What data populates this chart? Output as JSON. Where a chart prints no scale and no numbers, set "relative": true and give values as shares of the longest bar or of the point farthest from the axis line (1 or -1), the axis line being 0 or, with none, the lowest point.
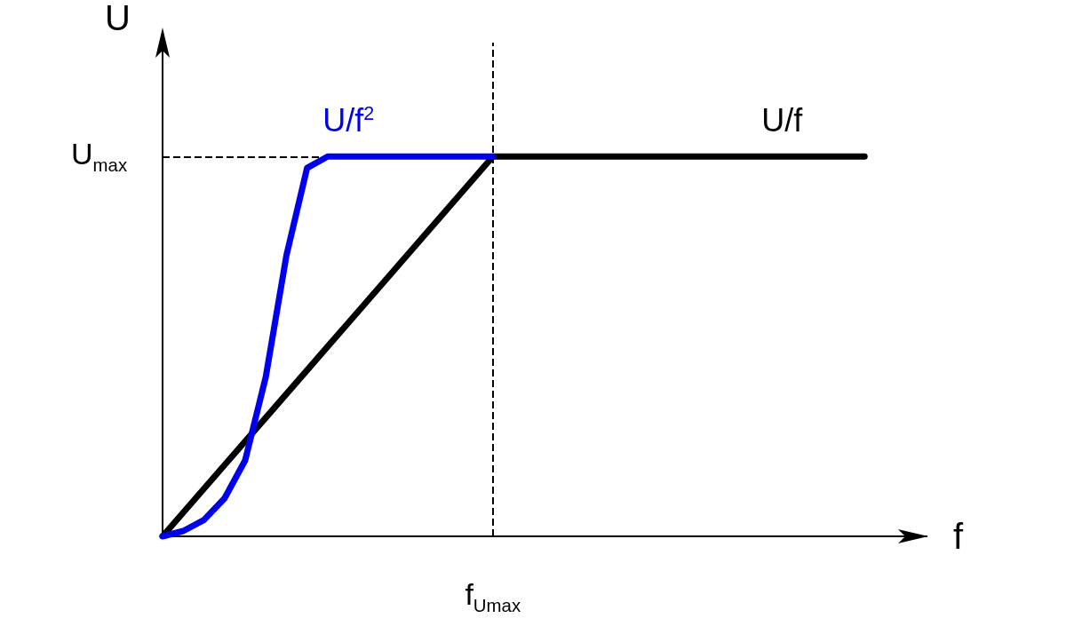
{
  "chart_data": {
    "type": "line",
    "relative": true,
    "xlabel": "f",
    "ylabel": "U",
    "categories": [
      null,
      null,
      null,
      null,
      null,
      null,
      null,
      null,
      null,
      null,
      null,
      null,
      null,
      null,
      null,
      null,
      null,
      null,
      null,
      null,
      null,
      null,
      null,
      null,
      null,
      null,
      null,
      null,
      null,
      null,
      null,
      null,
      null,
      null,
      null,
      null,
      null,
      null
    ],
    "series": [
      {
        "name": "U/f",
        "color": "#000000",
        "values": [
          0,
          0.0625,
          0.125,
          0.1875,
          0.25,
          0.3125,
          0.375,
          0.4375,
          0.5,
          0.5625,
          0.625,
          0.6875,
          0.75,
          0.8125,
          0.875,
          0.9375,
          1,
          1,
          1,
          1,
          1,
          1,
          1,
          1,
          1,
          1,
          1,
          1,
          1,
          1,
          1,
          1,
          1,
          1,
          1,
          null,
          null,
          null
        ]
      },
      {
        "name": "U/f$^{2}$",
        "color": "#0000ee",
        "values": [
          0,
          0.014,
          0.043,
          0.1,
          0.2,
          0.42,
          0.74,
          0.97,
          1,
          1,
          1,
          1,
          1,
          1,
          1,
          1,
          1,
          null,
          null,
          null,
          null,
          null,
          null,
          null,
          null,
          null,
          null,
          null,
          null,
          null,
          null,
          null,
          null,
          null,
          null,
          null,
          null,
          null
        ]
      }
    ],
    "ref_lines": [
      {
        "axis": "y",
        "value": 1,
        "label": "U$_{max}$",
        "color": "#000000",
        "line_style": "dashed"
      },
      {
        "axis": "x",
        "label": "f$_{Umax}$",
        "color": "#000000",
        "line_style": "dashed"
      }
    ],
    "marker": "none",
    "grid": false,
    "legend": false
  }
}
